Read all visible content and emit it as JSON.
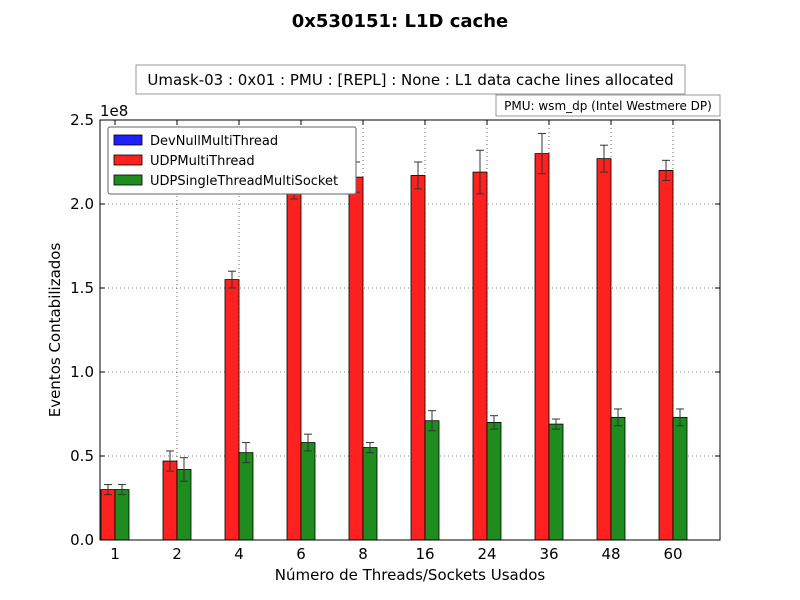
{
  "chart_data": {
    "type": "bar",
    "title": "0x530151: L1D cache",
    "subtitle": "Umask-03 : 0x01 : PMU : [REPL] : None : L1 data cache lines allocated",
    "annotation": "PMU: wsm_dp (Intel Westmere DP)",
    "xlabel": "Número de Threads/Sockets Usados",
    "ylabel": "Eventos Contabilizados",
    "y_scale_label": "1e8",
    "y_multiplier": 100000000,
    "ylim": [
      0,
      2.5
    ],
    "yticks": [
      "0.0",
      "0.5",
      "1.0",
      "1.5",
      "2.0",
      "2.5"
    ],
    "grid": true,
    "legend_position": "top-left",
    "categories": [
      "1",
      "2",
      "4",
      "6",
      "8",
      "16",
      "24",
      "36",
      "48",
      "60"
    ],
    "series": [
      {
        "name": "DevNullMultiThread",
        "color": "#1f1fff",
        "values": [
          0,
          0,
          0,
          0,
          0,
          0,
          0,
          0,
          0,
          0
        ],
        "errors": [
          0,
          0,
          0,
          0,
          0,
          0,
          0,
          0,
          0,
          0
        ]
      },
      {
        "name": "UDPMultiThread",
        "color": "#ff2020",
        "values": [
          0.3,
          0.47,
          1.55,
          2.08,
          2.16,
          2.17,
          2.19,
          2.3,
          2.27,
          2.2
        ],
        "errors": [
          0.03,
          0.06,
          0.05,
          0.05,
          0.09,
          0.08,
          0.13,
          0.12,
          0.08,
          0.06
        ]
      },
      {
        "name": "UDPSingleThreadMultiSocket",
        "color": "#1f8c1f",
        "values": [
          0.3,
          0.42,
          0.52,
          0.58,
          0.55,
          0.71,
          0.7,
          0.69,
          0.73,
          0.73
        ],
        "errors": [
          0.03,
          0.07,
          0.06,
          0.05,
          0.03,
          0.06,
          0.04,
          0.03,
          0.05,
          0.05
        ]
      }
    ]
  }
}
